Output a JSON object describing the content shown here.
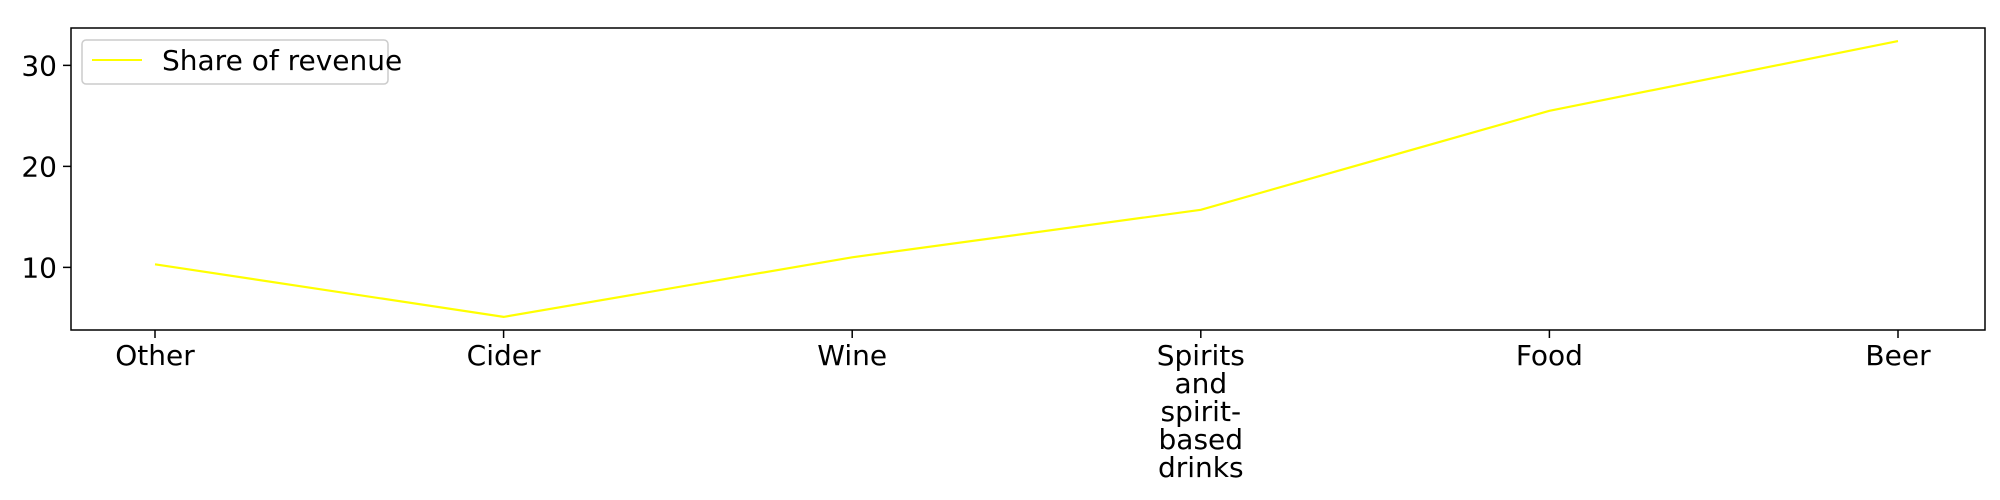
{
  "chart_data": {
    "type": "line",
    "categories": [
      "Other",
      "Cider",
      "Wine",
      "Spirits and spirit-based drinks",
      "Food",
      "Beer"
    ],
    "series": [
      {
        "name": "Share of revenue",
        "color": "#ffff00",
        "values": [
          10.3,
          5.1,
          11.0,
          15.7,
          25.5,
          32.4
        ]
      }
    ],
    "ylim": [
      3.8,
      33.7
    ],
    "yticks": [
      10,
      20,
      30
    ],
    "legend": "top-left",
    "grid": false,
    "title": "",
    "xlabel": "",
    "ylabel": ""
  }
}
